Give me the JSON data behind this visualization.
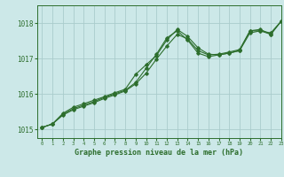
{
  "title": "Graphe pression niveau de la mer (hPa)",
  "bg_color": "#cce8e8",
  "grid_color": "#aacccc",
  "line_color": "#2d6e2d",
  "xlim": [
    -0.5,
    23
  ],
  "ylim": [
    1014.75,
    1018.5
  ],
  "yticks": [
    1015,
    1016,
    1017,
    1018
  ],
  "xticks": [
    0,
    1,
    2,
    3,
    4,
    5,
    6,
    7,
    8,
    9,
    10,
    11,
    12,
    13,
    14,
    15,
    16,
    17,
    18,
    19,
    20,
    21,
    22,
    23
  ],
  "series1_x": [
    0,
    1,
    2,
    3,
    4,
    5,
    6,
    7,
    8,
    9,
    10,
    11,
    12,
    13,
    14,
    15,
    16,
    17,
    18,
    19,
    20,
    21,
    22,
    23
  ],
  "series1_y": [
    1015.05,
    1015.15,
    1015.45,
    1015.62,
    1015.72,
    1015.82,
    1015.92,
    1016.03,
    1016.13,
    1016.55,
    1016.82,
    1017.08,
    1017.52,
    1017.82,
    1017.62,
    1017.3,
    1017.12,
    1017.1,
    1017.15,
    1017.22,
    1017.72,
    1017.78,
    1017.72,
    1018.05
  ],
  "series2_x": [
    0,
    1,
    2,
    3,
    4,
    5,
    6,
    7,
    8,
    9,
    10,
    11,
    12,
    13,
    14,
    15,
    16,
    17,
    18,
    19,
    20,
    21,
    22,
    23
  ],
  "series2_y": [
    1015.05,
    1015.15,
    1015.42,
    1015.58,
    1015.68,
    1015.78,
    1015.9,
    1016.0,
    1016.1,
    1016.32,
    1016.72,
    1017.12,
    1017.58,
    1017.78,
    1017.52,
    1017.15,
    1017.05,
    1017.1,
    1017.15,
    1017.22,
    1017.78,
    1017.78,
    1017.68,
    1018.05
  ],
  "series3_x": [
    0,
    1,
    2,
    3,
    4,
    5,
    6,
    7,
    8,
    9,
    10,
    11,
    12,
    13,
    14,
    15,
    16,
    17,
    18,
    19,
    20,
    21,
    22,
    23
  ],
  "series3_y": [
    1015.05,
    1015.15,
    1015.4,
    1015.55,
    1015.65,
    1015.75,
    1015.87,
    1015.97,
    1016.08,
    1016.28,
    1016.58,
    1016.98,
    1017.35,
    1017.68,
    1017.55,
    1017.22,
    1017.1,
    1017.12,
    1017.18,
    1017.25,
    1017.78,
    1017.82,
    1017.68,
    1018.05
  ]
}
